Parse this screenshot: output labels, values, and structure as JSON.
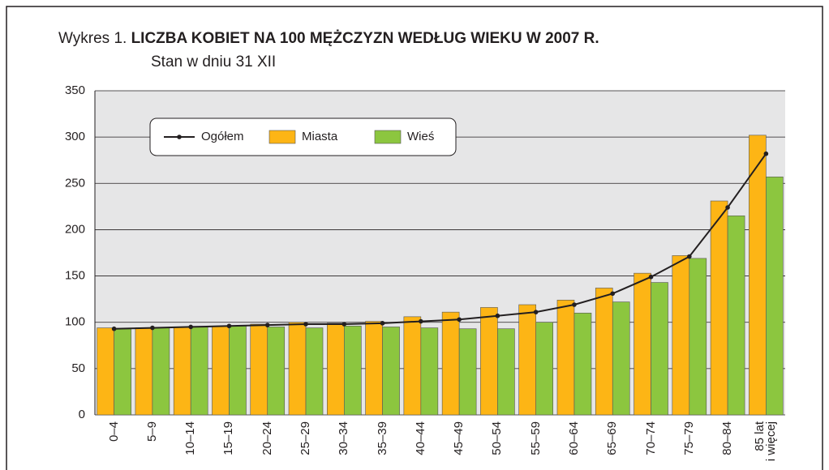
{
  "chart_data": {
    "type": "bar",
    "title_label": "Wykres 1.",
    "title": "LICZBA KOBIET NA 100 MĘŻCZYZN WEDŁUG WIEKU W 2007 R.",
    "subtitle": "Stan w dniu 31 XII",
    "categories": [
      "0–4",
      "5–9",
      "10–14",
      "15–19",
      "20–24",
      "25–29",
      "30–34",
      "35–39",
      "40–44",
      "45–49",
      "50–54",
      "55–59",
      "60–64",
      "65–69",
      "70–74",
      "75–79",
      "80–84",
      "85 lat\ni więcej"
    ],
    "series": [
      {
        "name": "Ogółem",
        "type": "line",
        "color": "#231f20",
        "values": [
          93,
          94,
          95,
          96,
          97,
          98,
          98,
          99,
          101,
          103,
          107,
          111,
          119,
          131,
          149,
          171,
          224,
          282
        ]
      },
      {
        "name": "Miasta",
        "type": "bar",
        "color": "#fdb515",
        "values": [
          94,
          94,
          95,
          96,
          98,
          100,
          99,
          101,
          106,
          111,
          116,
          119,
          124,
          137,
          153,
          172,
          231,
          302
        ]
      },
      {
        "name": "Wieś",
        "type": "bar",
        "color": "#8cc63f",
        "values": [
          93,
          94,
          95,
          96,
          95,
          94,
          96,
          95,
          94,
          93,
          93,
          100,
          110,
          122,
          143,
          169,
          215,
          257
        ]
      }
    ],
    "ylim": [
      0,
      350
    ],
    "yticks": [
      0,
      50,
      100,
      150,
      200,
      250,
      300,
      350
    ],
    "grid": true,
    "legend": "top-left"
  }
}
